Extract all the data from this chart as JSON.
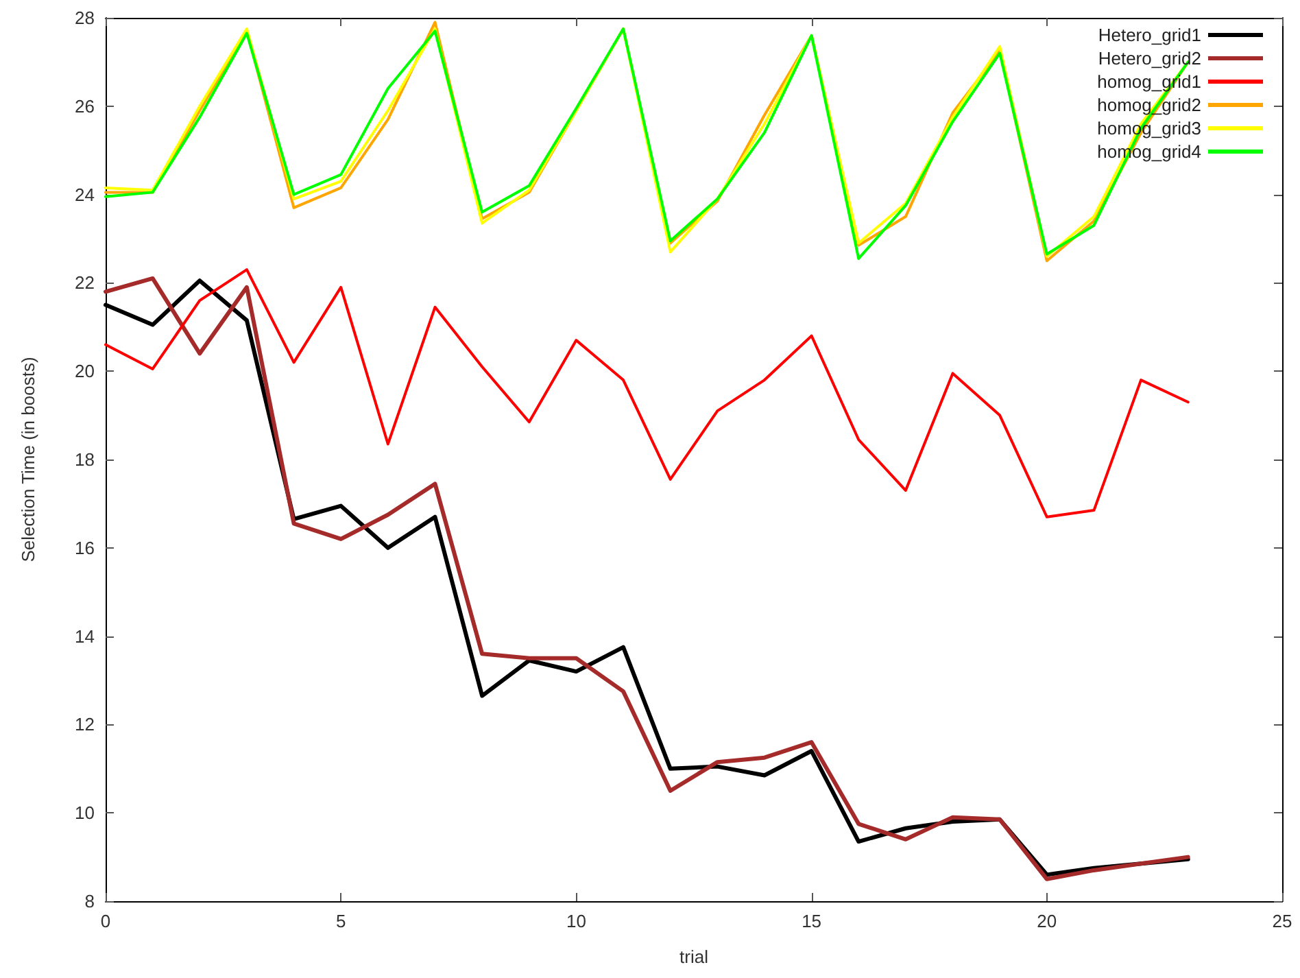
{
  "chart_data": {
    "type": "line",
    "xlabel": "trial",
    "ylabel": "Selection Time (in boosts)",
    "x": [
      0,
      1,
      2,
      3,
      4,
      5,
      6,
      7,
      8,
      9,
      10,
      11,
      12,
      13,
      14,
      15,
      16,
      17,
      18,
      19,
      20,
      21,
      22,
      23
    ],
    "xlim": [
      0,
      25
    ],
    "xticks": [
      0,
      5,
      10,
      15,
      20,
      25
    ],
    "ylim": [
      8,
      28
    ],
    "yticks": [
      8,
      10,
      12,
      14,
      16,
      18,
      20,
      22,
      24,
      26,
      28
    ],
    "grid": false,
    "legend": "top right",
    "marker": "none",
    "line_style": "solid",
    "series": [
      {
        "name": "Hetero_grid1",
        "color": "#000000",
        "values": [
          21.5,
          21.05,
          22.05,
          21.15,
          16.65,
          16.95,
          16.0,
          16.7,
          12.65,
          13.45,
          13.2,
          13.75,
          11.0,
          11.05,
          10.85,
          11.4,
          9.35,
          9.65,
          9.8,
          9.85,
          8.6,
          8.75,
          8.85,
          8.95
        ]
      },
      {
        "name": "Hetero_grid2",
        "color": "#a52a2a",
        "values": [
          21.8,
          22.1,
          20.4,
          21.9,
          16.55,
          16.2,
          16.75,
          17.45,
          13.6,
          13.5,
          13.5,
          12.75,
          10.5,
          11.15,
          11.25,
          11.6,
          9.75,
          9.4,
          9.9,
          9.85,
          8.5,
          8.7,
          8.85,
          9.0
        ]
      },
      {
        "name": "homog_grid1",
        "color": "#ff0000",
        "values": [
          20.6,
          20.05,
          21.6,
          22.3,
          20.2,
          21.9,
          18.35,
          21.45,
          20.1,
          18.85,
          20.7,
          19.8,
          17.55,
          19.1,
          19.8,
          20.8,
          18.45,
          17.3,
          19.95,
          19.0,
          16.7,
          16.85,
          19.8,
          19.3
        ]
      },
      {
        "name": "homog_grid2",
        "color": "#ffa500",
        "values": [
          24.05,
          24.05,
          25.9,
          27.7,
          23.7,
          24.15,
          25.7,
          27.9,
          23.45,
          24.05,
          25.9,
          27.75,
          22.9,
          23.85,
          25.8,
          27.6,
          22.85,
          23.5,
          25.85,
          27.25,
          22.5,
          23.4,
          25.4,
          27.0
        ]
      },
      {
        "name": "homog_grid3",
        "color": "#ffff00",
        "values": [
          24.15,
          24.1,
          26.0,
          27.75,
          23.9,
          24.3,
          25.9,
          27.75,
          23.35,
          24.1,
          25.9,
          27.75,
          22.7,
          23.9,
          25.6,
          27.6,
          22.9,
          23.8,
          25.75,
          27.35,
          22.6,
          23.5,
          25.6,
          27.0
        ]
      },
      {
        "name": "homog_grid4",
        "color": "#00ff00",
        "values": [
          23.95,
          24.05,
          25.75,
          27.65,
          24.0,
          24.45,
          26.4,
          27.7,
          23.6,
          24.2,
          25.95,
          27.75,
          22.95,
          23.9,
          25.4,
          27.6,
          22.55,
          23.75,
          25.65,
          27.2,
          22.65,
          23.3,
          25.5,
          27.0
        ]
      }
    ]
  }
}
